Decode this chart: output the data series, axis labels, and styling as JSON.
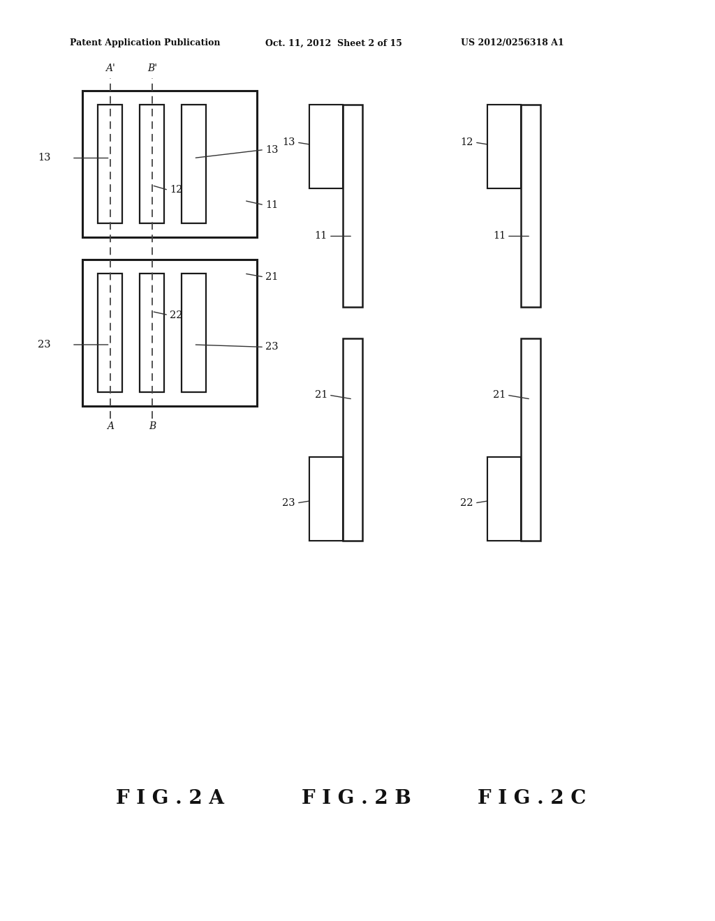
{
  "bg_color": "#ffffff",
  "header_text1": "Patent Application Publication",
  "header_text2": "Oct. 11, 2012  Sheet 2 of 15",
  "header_text3": "US 2012/0256318 A1",
  "fig_labels": [
    "F I G . 2 A",
    "F I G . 2 B",
    "F I G . 2 C"
  ]
}
